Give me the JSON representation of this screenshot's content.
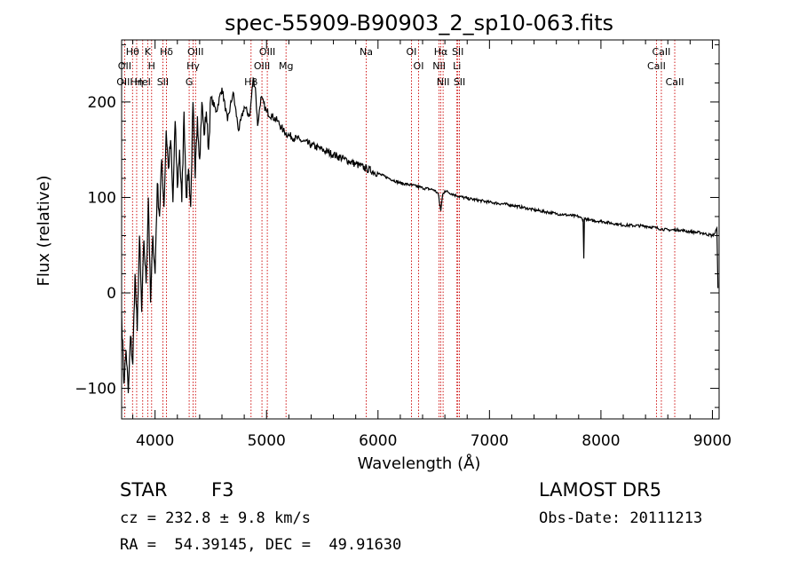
{
  "chart_data": {
    "type": "line",
    "title": "spec-55909-B90903_2_sp10-063.fits",
    "xlabel": "Wavelength (Å)",
    "ylabel": "Flux (relative)",
    "xlim": [
      3700,
      9060
    ],
    "ylim": [
      -132,
      265
    ],
    "xticks": [
      4000,
      5000,
      6000,
      7000,
      8000,
      9000
    ],
    "yticks": [
      -100,
      0,
      100,
      200
    ],
    "grid": false,
    "series": [
      {
        "color": "#000000",
        "x": [
          3700,
          3720,
          3740,
          3760,
          3780,
          3800,
          3820,
          3840,
          3860,
          3880,
          3900,
          3920,
          3940,
          3960,
          3980,
          4000,
          4020,
          4040,
          4060,
          4080,
          4100,
          4120,
          4140,
          4160,
          4180,
          4200,
          4220,
          4240,
          4260,
          4280,
          4300,
          4320,
          4340,
          4360,
          4380,
          4400,
          4420,
          4440,
          4460,
          4480,
          4500,
          4550,
          4600,
          4650,
          4700,
          4750,
          4800,
          4850,
          4880,
          4900,
          4920,
          4950,
          5000,
          5050,
          5100,
          5150,
          5200,
          5300,
          5400,
          5500,
          5600,
          5700,
          5800,
          5900,
          6000,
          6100,
          6200,
          6300,
          6400,
          6500,
          6540,
          6563,
          6580,
          6600,
          6700,
          6800,
          7000,
          7200,
          7400,
          7600,
          7800,
          7840,
          7846,
          7852,
          7900,
          8000,
          8200,
          8400,
          8500,
          8540,
          8600,
          8700,
          8800,
          8900,
          9000,
          9020,
          9040,
          9050
        ],
        "y": [
          -20,
          -95,
          -60,
          -105,
          -45,
          -75,
          20,
          -40,
          60,
          -20,
          55,
          10,
          100,
          -10,
          60,
          20,
          115,
          80,
          140,
          90,
          170,
          130,
          160,
          95,
          180,
          110,
          150,
          95,
          190,
          100,
          130,
          90,
          200,
          120,
          185,
          140,
          200,
          165,
          190,
          150,
          205,
          190,
          215,
          180,
          210,
          170,
          195,
          185,
          225,
          215,
          175,
          205,
          190,
          185,
          180,
          170,
          165,
          160,
          155,
          150,
          145,
          140,
          135,
          130,
          125,
          120,
          115,
          113,
          110,
          108,
          104,
          86,
          103,
          107,
          102,
          99,
          95,
          92,
          87,
          83,
          80,
          77,
          36,
          78,
          76,
          75,
          71,
          70,
          68,
          67,
          66,
          66,
          64,
          63,
          60,
          62,
          68,
          5
        ]
      }
    ],
    "line_labels": [
      {
        "text": "Hθ",
        "x": 3798
      },
      {
        "text": "OII",
        "x": 3727
      },
      {
        "text": "OIII",
        "x": 3727
      },
      {
        "text": "K",
        "x": 3934
      },
      {
        "text": "Hη",
        "x": 3835
      },
      {
        "text": "HeI",
        "x": 3889
      },
      {
        "text": "H",
        "x": 3969
      },
      {
        "text": "Hδ",
        "x": 4102
      },
      {
        "text": "SII",
        "x": 4070
      },
      {
        "text": "OIII",
        "x": 4363
      },
      {
        "text": "Hγ",
        "x": 4341
      },
      {
        "text": "G",
        "x": 4306
      },
      {
        "text": "OIII",
        "x": 5007
      },
      {
        "text": "OIII",
        "x": 4959
      },
      {
        "text": "Hβ",
        "x": 4861
      },
      {
        "text": "Mg",
        "x": 5175
      },
      {
        "text": "Na",
        "x": 5894
      },
      {
        "text": "OI",
        "x": 6300
      },
      {
        "text": "OI",
        "x": 6364
      },
      {
        "text": "Hα",
        "x": 6563
      },
      {
        "text": "SII",
        "x": 6716
      },
      {
        "text": "NII",
        "x": 6548
      },
      {
        "text": "Li",
        "x": 6708
      },
      {
        "text": "NII",
        "x": 6584
      },
      {
        "text": "SII",
        "x": 6731
      },
      {
        "text": "CaII",
        "x": 8542
      },
      {
        "text": "CaII",
        "x": 8498
      },
      {
        "text": "CaII",
        "x": 8662
      }
    ],
    "line_markers": [
      3727,
      3798,
      3835,
      3889,
      3934,
      3969,
      4070,
      4102,
      4306,
      4341,
      4363,
      4861,
      4959,
      5007,
      5175,
      5894,
      6300,
      6364,
      6548,
      6563,
      6584,
      6708,
      6716,
      6731,
      8498,
      8542,
      8662
    ],
    "marker_color": "#cc0000"
  },
  "info": {
    "class_label": "STAR",
    "subclass": "F3",
    "survey": "LAMOST DR5",
    "cz": "cz = 232.8 ± 9.8 km/s",
    "obs_date": "Obs-Date: 20111213",
    "coords": "RA =  54.39145, DEC =  49.91630"
  }
}
